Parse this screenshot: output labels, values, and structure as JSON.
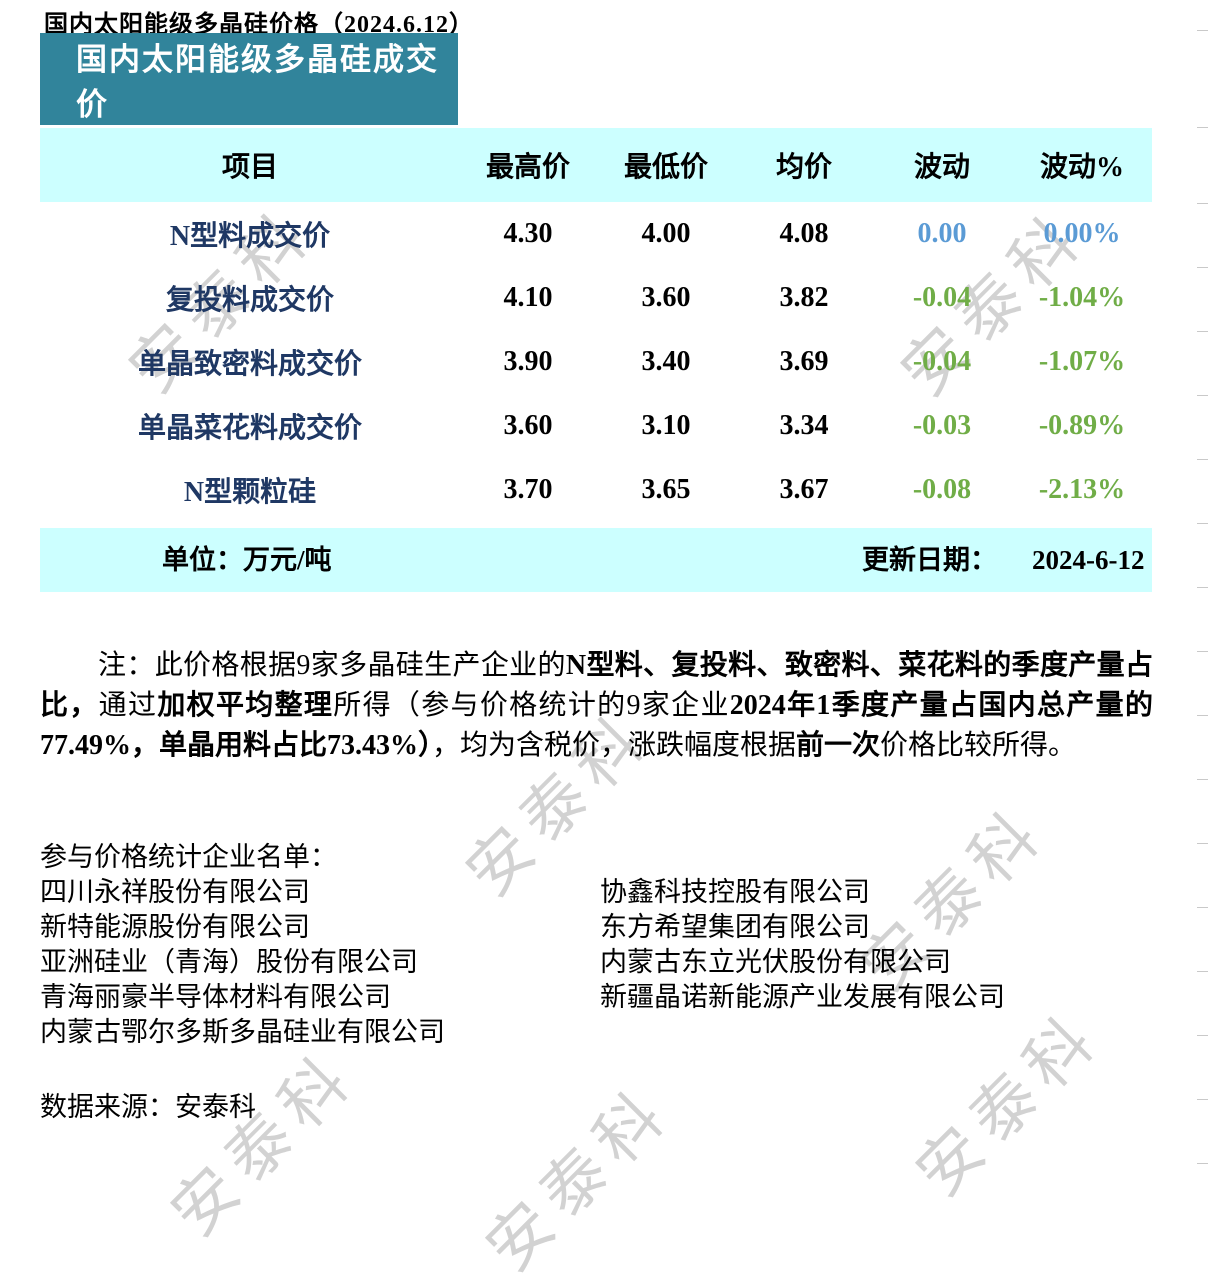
{
  "page": {
    "title": "国内太阳能级多晶硅价格（2024.6.12）",
    "watermark_text": "安泰科"
  },
  "table": {
    "banner": "国内太阳能级多晶硅成交价",
    "columns": [
      "项目",
      "最高价",
      "最低价",
      "均价",
      "波动",
      "波动%"
    ],
    "rows": [
      {
        "item": "N型料成交价",
        "high": "4.30",
        "low": "4.00",
        "avg": "4.08",
        "change": "0.00",
        "change_pct": "0.00%",
        "trend": "flat"
      },
      {
        "item": "复投料成交价",
        "high": "4.10",
        "low": "3.60",
        "avg": "3.82",
        "change": "-0.04",
        "change_pct": "-1.04%",
        "trend": "down"
      },
      {
        "item": "单晶致密料成交价",
        "high": "3.90",
        "low": "3.40",
        "avg": "3.69",
        "change": "-0.04",
        "change_pct": "-1.07%",
        "trend": "down"
      },
      {
        "item": "单晶菜花料成交价",
        "high": "3.60",
        "low": "3.10",
        "avg": "3.34",
        "change": "-0.03",
        "change_pct": "-0.89%",
        "trend": "down"
      },
      {
        "item": "N型颗粒硅",
        "high": "3.70",
        "low": "3.65",
        "avg": "3.67",
        "change": "-0.08",
        "change_pct": "-2.13%",
        "trend": "down"
      }
    ],
    "footer": {
      "unit_label": "单位：万元/吨",
      "update_label": "更新日期：",
      "update_date": "2024-6-12"
    }
  },
  "note": {
    "segments": [
      {
        "text": "注：此价格根据9家多晶硅生产企业的",
        "bold": false
      },
      {
        "text": "N型料、复投料、致密料、菜花料的季度产量占比，",
        "bold": true
      },
      {
        "text": "通过",
        "bold": false
      },
      {
        "text": "加权平均整理",
        "bold": true
      },
      {
        "text": "所得（参与价格统计的9家企业",
        "bold": false
      },
      {
        "text": "2024年1季度产量占国内总产量的77.49%，单晶用料占比73.43%）",
        "bold": true
      },
      {
        "text": "，均为含税价，涨跌幅度根据",
        "bold": false
      },
      {
        "text": "前一次",
        "bold": true
      },
      {
        "text": "价格比较所得。",
        "bold": false
      }
    ]
  },
  "participants": {
    "heading": "参与价格统计企业名单：",
    "left": [
      "四川永祥股份有限公司",
      "新特能源股份有限公司",
      "亚洲硅业（青海）股份有限公司",
      "青海丽豪半导体材料有限公司",
      "内蒙古鄂尔多斯多晶硅业有限公司"
    ],
    "right": [
      "协鑫科技控股有限公司",
      "东方希望集团有限公司",
      "内蒙古东立光伏股份有限公司",
      "新疆晶诺新能源产业发展有限公司"
    ]
  },
  "source": {
    "label": "数据来源：",
    "value": "安泰科"
  },
  "colors": {
    "teal": "#31849B",
    "band": "#CCFFFF",
    "navy": "#1F3864",
    "flat-blue": "#5B9BD5",
    "down-green": "#70AD47",
    "wm": "#d2d2d2"
  }
}
